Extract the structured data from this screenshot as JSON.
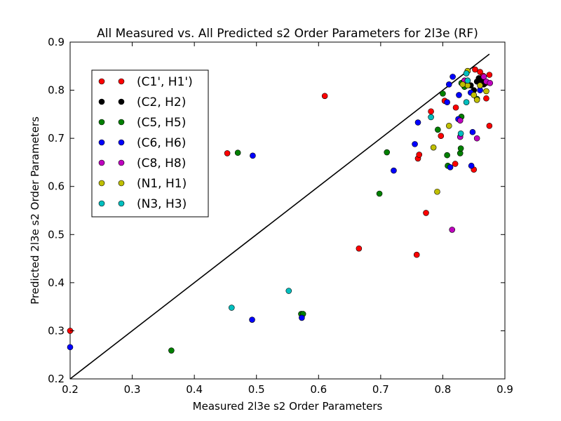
{
  "chart_data": {
    "type": "scatter",
    "title": "All Measured vs. All Predicted s2 Order Parameters for 2l3e (RF)",
    "xlabel": "Measured 2l3e s2 Order Parameters",
    "ylabel": "Predicted 2l3e s2 Order Parameters",
    "xlim": [
      0.2,
      0.9
    ],
    "ylim": [
      0.2,
      0.9
    ],
    "xticks": [
      "0.2",
      "0.3",
      "0.4",
      "0.5",
      "0.6",
      "0.7",
      "0.8",
      "0.9"
    ],
    "yticks": [
      "0.2",
      "0.3",
      "0.4",
      "0.5",
      "0.6",
      "0.7",
      "0.8",
      "0.9"
    ],
    "grid": false,
    "legend_position": "upper-left",
    "reference_line": {
      "x": [
        0.2,
        0.875
      ],
      "y": [
        0.2,
        0.875
      ],
      "color": "#000000"
    },
    "series": [
      {
        "name": "(C1', H1')",
        "color": "#ff0000",
        "points": [
          [
            0.2,
            0.3
          ],
          [
            0.453,
            0.669
          ],
          [
            0.61,
            0.788
          ],
          [
            0.665,
            0.471
          ],
          [
            0.758,
            0.458
          ],
          [
            0.76,
            0.658
          ],
          [
            0.762,
            0.666
          ],
          [
            0.773,
            0.545
          ],
          [
            0.781,
            0.756
          ],
          [
            0.797,
            0.705
          ],
          [
            0.803,
            0.778
          ],
          [
            0.82,
            0.647
          ],
          [
            0.821,
            0.764
          ],
          [
            0.84,
            0.84
          ],
          [
            0.85,
            0.635
          ],
          [
            0.852,
            0.843
          ],
          [
            0.86,
            0.838
          ],
          [
            0.869,
            0.815
          ],
          [
            0.87,
            0.783
          ],
          [
            0.875,
            0.832
          ],
          [
            0.875,
            0.726
          ],
          [
            0.835,
            0.82
          ],
          [
            0.865,
            0.83
          ]
        ]
      },
      {
        "name": "(C2, H2)",
        "color": "#000000",
        "points": [
          [
            0.845,
            0.81
          ],
          [
            0.855,
            0.818
          ],
          [
            0.858,
            0.825
          ],
          [
            0.862,
            0.822
          ],
          [
            0.866,
            0.812
          ],
          [
            0.85,
            0.8
          ]
        ]
      },
      {
        "name": "(C5, H5)",
        "color": "#008000",
        "points": [
          [
            0.363,
            0.259
          ],
          [
            0.47,
            0.67
          ],
          [
            0.572,
            0.335
          ],
          [
            0.575,
            0.335
          ],
          [
            0.698,
            0.585
          ],
          [
            0.71,
            0.671
          ],
          [
            0.792,
            0.718
          ],
          [
            0.8,
            0.793
          ],
          [
            0.807,
            0.665
          ],
          [
            0.808,
            0.643
          ],
          [
            0.828,
            0.669
          ],
          [
            0.829,
            0.679
          ],
          [
            0.83,
            0.745
          ],
          [
            0.83,
            0.815
          ],
          [
            0.835,
            0.807
          ],
          [
            0.855,
            0.782
          ]
        ]
      },
      {
        "name": "(C6, H6)",
        "color": "#0000ff",
        "points": [
          [
            0.2,
            0.266
          ],
          [
            0.493,
            0.323
          ],
          [
            0.494,
            0.664
          ],
          [
            0.573,
            0.327
          ],
          [
            0.721,
            0.633
          ],
          [
            0.755,
            0.688
          ],
          [
            0.76,
            0.733
          ],
          [
            0.807,
            0.775
          ],
          [
            0.81,
            0.812
          ],
          [
            0.812,
            0.64
          ],
          [
            0.816,
            0.828
          ],
          [
            0.825,
            0.74
          ],
          [
            0.826,
            0.79
          ],
          [
            0.84,
            0.82
          ],
          [
            0.845,
            0.795
          ],
          [
            0.846,
            0.643
          ],
          [
            0.848,
            0.713
          ],
          [
            0.86,
            0.8
          ]
        ]
      },
      {
        "name": "(C8, H8)",
        "color": "#bf00bf",
        "points": [
          [
            0.815,
            0.51
          ],
          [
            0.828,
            0.737
          ],
          [
            0.828,
            0.703
          ],
          [
            0.835,
            0.82
          ],
          [
            0.855,
            0.7
          ],
          [
            0.866,
            0.828
          ],
          [
            0.87,
            0.818
          ],
          [
            0.876,
            0.815
          ],
          [
            0.86,
            0.81
          ]
        ]
      },
      {
        "name": "(N1, H1)",
        "color": "#bfbf00",
        "points": [
          [
            0.785,
            0.681
          ],
          [
            0.791,
            0.589
          ],
          [
            0.81,
            0.726
          ],
          [
            0.84,
            0.84
          ],
          [
            0.84,
            0.81
          ],
          [
            0.85,
            0.79
          ],
          [
            0.855,
            0.78
          ],
          [
            0.86,
            0.81
          ],
          [
            0.87,
            0.798
          ],
          [
            0.832,
            0.812
          ]
        ]
      },
      {
        "name": "(N3, H3)",
        "color": "#00bfbf",
        "points": [
          [
            0.46,
            0.348
          ],
          [
            0.552,
            0.383
          ],
          [
            0.781,
            0.744
          ],
          [
            0.829,
            0.71
          ],
          [
            0.838,
            0.775
          ],
          [
            0.838,
            0.835
          ],
          [
            0.84,
            0.82
          ]
        ]
      }
    ]
  }
}
